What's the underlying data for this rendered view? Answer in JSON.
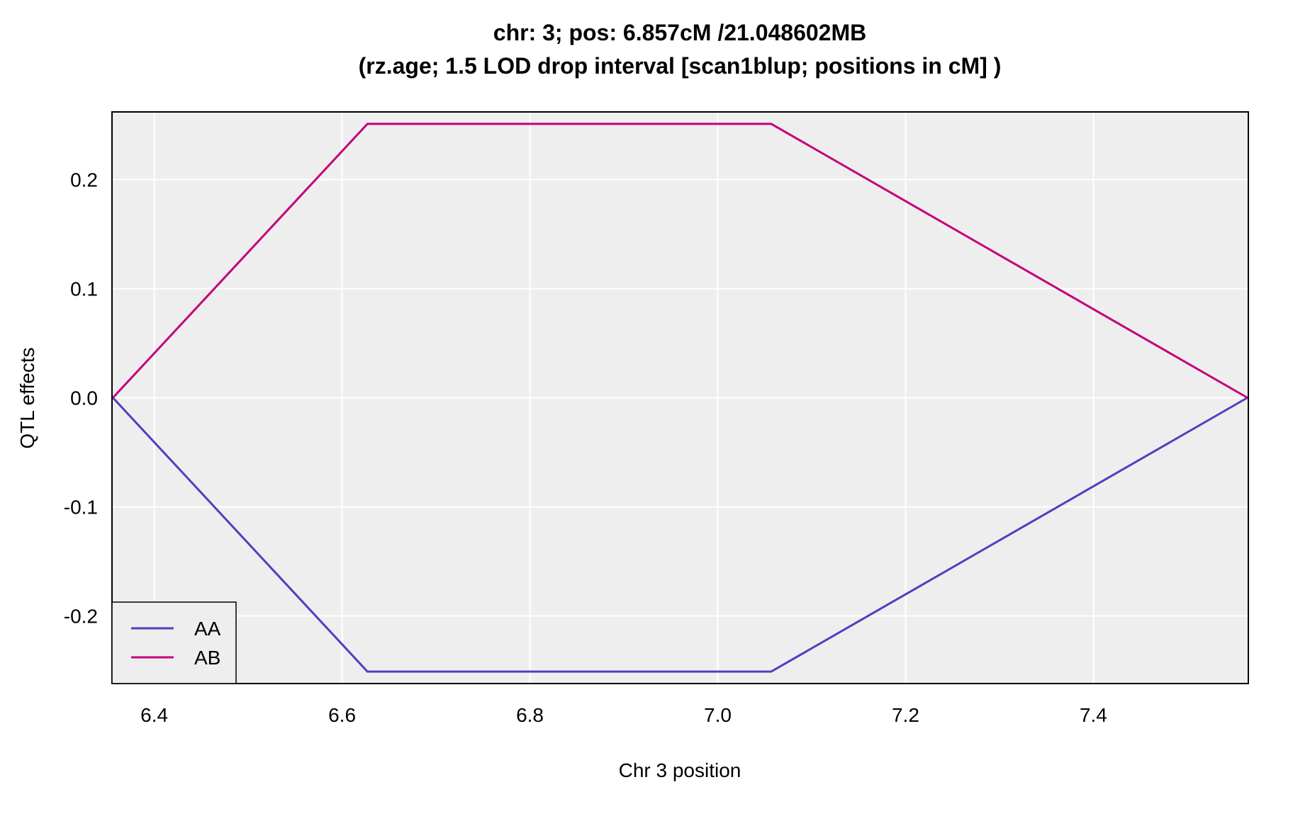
{
  "chart_data": {
    "type": "line",
    "title": "chr: 3; pos: 6.857cM /21.048602MB",
    "subtitle": "(rz.age; 1.5 LOD drop interval [scan1blup; positions in cM] )",
    "xlabel": "Chr 3 position",
    "ylabel": "QTL effects",
    "xlim": [
      6.355,
      7.565
    ],
    "ylim": [
      -0.262,
      0.262
    ],
    "xticks": [
      6.4,
      6.6,
      6.8,
      7.0,
      7.2,
      7.4
    ],
    "xtick_labels": [
      "6.4",
      "6.6",
      "6.8",
      "7.0",
      "7.2",
      "7.4"
    ],
    "yticks": [
      -0.2,
      -0.1,
      0.0,
      0.1,
      0.2
    ],
    "ytick_labels": [
      "-0.2",
      "-0.1",
      "0.0",
      "0.1",
      "0.2"
    ],
    "grid": true,
    "legend_position": "bottom-left",
    "background_color": "#eeeeee",
    "grid_color": "#ffffff",
    "series": [
      {
        "name": "AA",
        "color": "#4f3fbf",
        "x": [
          6.356,
          6.627,
          7.057,
          7.564
        ],
        "y": [
          0.0,
          -0.251,
          -0.251,
          0.0
        ]
      },
      {
        "name": "AB",
        "color": "#c4007b",
        "x": [
          6.356,
          6.627,
          7.057,
          7.564
        ],
        "y": [
          0.0,
          0.251,
          0.251,
          0.0
        ]
      }
    ]
  }
}
